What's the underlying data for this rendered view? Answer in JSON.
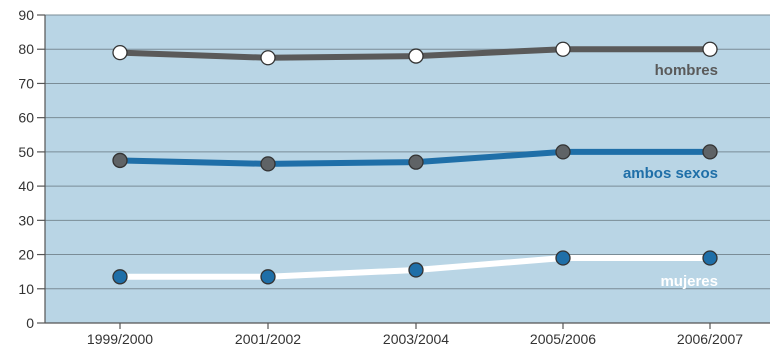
{
  "chart_data": {
    "type": "line",
    "x": [
      "1999/2000",
      "2001/2002",
      "2003/2004",
      "2005/2006",
      "2006/2007"
    ],
    "series": [
      {
        "name": "hombres",
        "values": [
          79,
          77.5,
          78,
          80,
          80
        ],
        "line_color": "#5a5a5a",
        "marker_fill": "#ffffff",
        "label_color": "#5a5a5a"
      },
      {
        "name": "ambos sexos",
        "values": [
          47.5,
          46.5,
          47,
          50,
          50
        ],
        "line_color": "#1f6fa8",
        "marker_fill": "#5f6366",
        "label_color": "#1f6fa8"
      },
      {
        "name": "mujeres",
        "values": [
          13.5,
          13.5,
          15.5,
          19,
          19
        ],
        "line_color": "#ffffff",
        "marker_fill": "#1f6fa8",
        "label_color": "#ffffff"
      }
    ],
    "yticks": [
      0,
      10,
      20,
      30,
      40,
      50,
      60,
      70,
      80,
      90
    ],
    "ylim": [
      0,
      90
    ],
    "grid": true,
    "background_color": "#b9d5e5",
    "grid_color": "#7a8c96"
  }
}
